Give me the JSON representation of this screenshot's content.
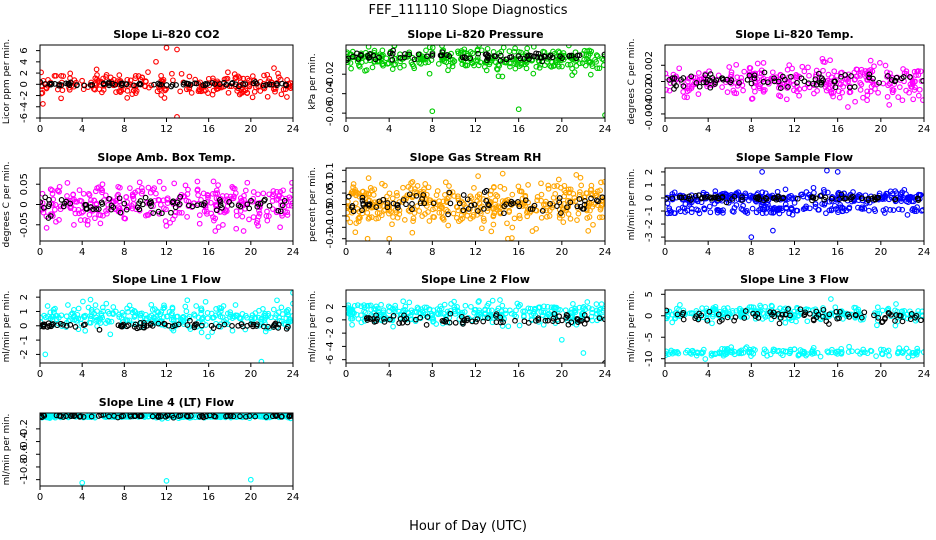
{
  "figure": {
    "title": "FEF_111110  Slope Diagnostics",
    "xlabel": "Hour of Day (UTC)"
  },
  "chart_data": [
    {
      "type": "scatter",
      "title": "Slope Li–820 CO2",
      "ylabel": "Licor ppm per min.",
      "xlim": [
        0,
        24
      ],
      "xticks": [
        0,
        4,
        8,
        12,
        16,
        20,
        24
      ],
      "ylim": [
        -6,
        7
      ],
      "yticks": [
        -6,
        -4,
        -2,
        0,
        2,
        4,
        6
      ],
      "series": [
        {
          "color": "#ff0000",
          "center": 0,
          "spread": 2,
          "n": 240,
          "outliers": [
            [
              12,
              6.5
            ],
            [
              13,
              6.2
            ],
            [
              13,
              -5.8
            ],
            [
              2,
              -2.5
            ],
            [
              11,
              4
            ]
          ]
        },
        {
          "color": "#000000",
          "center": 0,
          "spread": 0.3,
          "n": 80
        }
      ]
    },
    {
      "type": "scatter",
      "title": "Slope Li–820 Pressure",
      "ylabel": "kPa per min.",
      "xlim": [
        0,
        24
      ],
      "xticks": [
        0,
        4,
        8,
        12,
        16,
        20,
        24
      ],
      "ylim": [
        -0.065,
        0.01
      ],
      "yticks": [
        -0.06,
        -0.04,
        -0.02
      ],
      "series": [
        {
          "color": "#00cc00",
          "center": -0.005,
          "spread": 0.012,
          "n": 320,
          "outliers": [
            [
              8,
              -0.058
            ],
            [
              16,
              -0.056
            ],
            [
              24,
              -0.062
            ]
          ]
        },
        {
          "color": "#000000",
          "center": -0.002,
          "spread": 0.004,
          "n": 80
        }
      ]
    },
    {
      "type": "scatter",
      "title": "Slope Li–820 Temp.",
      "ylabel": "degrees C per min.",
      "xlim": [
        0,
        24
      ],
      "xticks": [
        0,
        4,
        8,
        12,
        16,
        20,
        24
      ],
      "ylim": [
        -0.0045,
        0.0045
      ],
      "yticks": [
        -0.004,
        -0.002,
        0.0,
        0.002
      ],
      "series": [
        {
          "color": "#ff00ff",
          "center": 0,
          "spread": 0.0022,
          "n": 300,
          "outliers": []
        },
        {
          "color": "#000000",
          "center": 0,
          "spread": 0.001,
          "n": 80
        }
      ]
    },
    {
      "type": "scatter",
      "title": "Slope Amb. Box Temp.",
      "ylabel": "degrees C per min.",
      "xlim": [
        0,
        24
      ],
      "xticks": [
        0,
        4,
        8,
        12,
        16,
        20,
        24
      ],
      "ylim": [
        -0.09,
        0.09
      ],
      "yticks": [
        -0.05,
        0.0,
        0.05
      ],
      "series": [
        {
          "color": "#ff00ff",
          "center": 0,
          "spread": 0.05,
          "n": 320,
          "outliers": []
        },
        {
          "color": "#000000",
          "center": 0,
          "spread": 0.02,
          "n": 80
        }
      ]
    },
    {
      "type": "scatter",
      "title": "Slope Gas Stream RH",
      "ylabel": "percent per min.",
      "xlim": [
        0,
        24
      ],
      "xticks": [
        0,
        4,
        8,
        12,
        16,
        20,
        24
      ],
      "ylim": [
        -0.16,
        0.16
      ],
      "yticks": [
        -0.15,
        -0.1,
        -0.05,
        0.0,
        0.05,
        0.1,
        0.15
      ],
      "series": [
        {
          "color": "#ffa500",
          "center": 0,
          "spread": 0.1,
          "n": 420,
          "outliers": [
            [
              2,
              -0.15
            ],
            [
              4,
              -0.15
            ],
            [
              15,
              -0.15
            ]
          ]
        },
        {
          "color": "#000000",
          "center": 0,
          "spread": 0.05,
          "n": 80
        }
      ]
    },
    {
      "type": "scatter",
      "title": "Slope Sample Flow",
      "ylabel": "ml/min per min.",
      "xlim": [
        0,
        24
      ],
      "xticks": [
        0,
        4,
        8,
        12,
        16,
        20,
        24
      ],
      "ylim": [
        -3.3,
        2.3
      ],
      "yticks": [
        -3,
        -2,
        -1,
        0,
        1,
        2
      ],
      "series": [
        {
          "color": "#0000ff",
          "center": 0,
          "spread": 0.5,
          "n": 260,
          "outliers": [
            [
              8,
              -3
            ],
            [
              10,
              -2.5
            ],
            [
              9,
              2
            ],
            [
              16,
              2
            ],
            [
              15,
              2.1
            ]
          ]
        },
        {
          "color": "#0000ff",
          "center": -0.9,
          "spread": 0.3,
          "n": 120
        },
        {
          "color": "#000000",
          "center": 0,
          "spread": 0.2,
          "n": 80
        }
      ]
    },
    {
      "type": "scatter",
      "title": "Slope Line 1 Flow",
      "ylabel": "ml/min per min.",
      "xlim": [
        0,
        24
      ],
      "xticks": [
        0,
        4,
        8,
        12,
        16,
        20,
        24
      ],
      "ylim": [
        -2.6,
        2.5
      ],
      "yticks": [
        -2,
        -1,
        0,
        1,
        2
      ],
      "series": [
        {
          "color": "#00ffff",
          "center": 0.6,
          "spread": 0.9,
          "n": 300,
          "outliers": [
            [
              0.5,
              -2
            ],
            [
              21,
              -2.5
            ],
            [
              24,
              2.3
            ]
          ]
        },
        {
          "color": "#000000",
          "center": 0,
          "spread": 0.2,
          "n": 80
        }
      ]
    },
    {
      "type": "scatter",
      "title": "Slope Line 2 Flow",
      "ylabel": "ml/min per min.",
      "xlim": [
        0,
        24
      ],
      "xticks": [
        0,
        4,
        8,
        12,
        16,
        20,
        24
      ],
      "ylim": [
        -6.5,
        4.5
      ],
      "yticks": [
        -6,
        -4,
        -2,
        0,
        2
      ],
      "series": [
        {
          "color": "#00ffff",
          "center": 1,
          "spread": 1.6,
          "n": 320,
          "outliers": [
            [
              22,
              -5
            ],
            [
              20,
              -3
            ]
          ]
        },
        {
          "color": "#000000",
          "center": 0,
          "spread": 0.8,
          "n": 80,
          "outliers": [
            [
              24,
              -6.5
            ]
          ]
        }
      ]
    },
    {
      "type": "scatter",
      "title": "Slope Line 3 Flow",
      "ylabel": "ml/min per min.",
      "xlim": [
        0,
        24
      ],
      "xticks": [
        0,
        4,
        8,
        12,
        16,
        20,
        24
      ],
      "ylim": [
        -11,
        6
      ],
      "yticks": [
        -10,
        -5,
        0,
        5
      ],
      "series": [
        {
          "color": "#00ffff",
          "center": 0.5,
          "spread": 1.8,
          "n": 260,
          "outliers": []
        },
        {
          "color": "#00ffff",
          "center": -8.5,
          "spread": 1,
          "n": 160
        },
        {
          "color": "#000000",
          "center": 0,
          "spread": 1.5,
          "n": 80
        }
      ]
    },
    {
      "type": "scatter",
      "title": "Slope Line 4 (LT) Flow",
      "ylabel": "ml/min per min.",
      "xlim": [
        0,
        24
      ],
      "xticks": [
        0,
        4,
        8,
        12,
        16,
        20,
        24
      ],
      "ylim": [
        -1.1,
        0.05
      ],
      "yticks": [
        -1.0,
        -0.8,
        -0.6,
        -0.4,
        -0.2
      ],
      "series": [
        {
          "color": "#00ffff",
          "center": 0,
          "spread": 0.03,
          "n": 320,
          "outliers": [
            [
              4,
              -1.05
            ],
            [
              12,
              -1.02
            ],
            [
              20,
              -1.0
            ]
          ]
        },
        {
          "color": "#000000",
          "center": 0,
          "spread": 0.02,
          "n": 80
        }
      ]
    }
  ]
}
